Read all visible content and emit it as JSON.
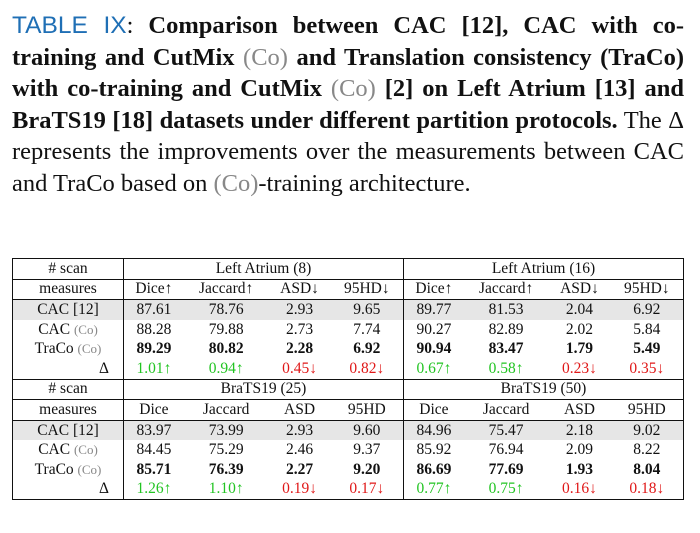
{
  "caption": {
    "label": "TABLE IX",
    "segments": [
      ": ",
      "Comparison between CAC [12], CAC with co-training and CutMix ",
      "(Co)",
      " and Translation consistency (TraCo) with co-training and CutMix ",
      "(Co)",
      " [2] on Left Atrium [13] and BraTS19 [18] datasets under different partition protocols.",
      " The Δ represents the improvements over the measurements between CAC and TraCo based on ",
      "(Co)",
      "-training architecture."
    ]
  },
  "table": {
    "sections": [
      {
        "scan_label": "# scan",
        "groups": [
          "Left Atrium (8)",
          "Left Atrium (16)"
        ],
        "measures_label": "measures",
        "measures": [
          "Dice↑",
          "Jaccard↑",
          "ASD↓",
          "95HD↓",
          "Dice↑",
          "Jaccard↑",
          "ASD↓",
          "95HD↓"
        ],
        "rows": [
          {
            "name": "CAC [12]",
            "values": [
              "87.61",
              "78.76",
              "2.93",
              "9.65",
              "89.77",
              "81.53",
              "2.04",
              "6.92"
            ]
          },
          {
            "name": "CAC",
            "tag": "(Co)",
            "values": [
              "88.28",
              "79.88",
              "2.73",
              "7.74",
              "90.27",
              "82.89",
              "2.02",
              "5.84"
            ]
          },
          {
            "name": "TraCo",
            "tag": "(Co)",
            "values": [
              "89.29",
              "80.82",
              "2.28",
              "6.92",
              "90.94",
              "83.47",
              "1.79",
              "5.49"
            ]
          },
          {
            "name": "Δ",
            "values": [
              "1.01↑",
              "0.94↑",
              "0.45↓",
              "0.82↓",
              "0.67↑",
              "0.58↑",
              "0.23↓",
              "0.35↓"
            ]
          }
        ]
      },
      {
        "scan_label": "# scan",
        "groups": [
          "BraTS19 (25)",
          "BraTS19 (50)"
        ],
        "measures_label": "measures",
        "measures": [
          "Dice",
          "Jaccard",
          "ASD",
          "95HD",
          "Dice",
          "Jaccard",
          "ASD",
          "95HD"
        ],
        "rows": [
          {
            "name": "CAC [12]",
            "values": [
              "83.97",
              "73.99",
              "2.93",
              "9.60",
              "84.96",
              "75.47",
              "2.18",
              "9.02"
            ]
          },
          {
            "name": "CAC",
            "tag": "(Co)",
            "values": [
              "84.45",
              "75.29",
              "2.46",
              "9.37",
              "85.92",
              "76.94",
              "2.09",
              "8.22"
            ]
          },
          {
            "name": "TraCo",
            "tag": "(Co)",
            "values": [
              "85.71",
              "76.39",
              "2.27",
              "9.20",
              "86.69",
              "77.69",
              "1.93",
              "8.04"
            ]
          },
          {
            "name": "Δ",
            "values": [
              "1.26↑",
              "1.10↑",
              "0.19↓",
              "0.17↓",
              "0.77↑",
              "0.75↑",
              "0.16↓",
              "0.18↓"
            ]
          }
        ]
      }
    ]
  }
}
